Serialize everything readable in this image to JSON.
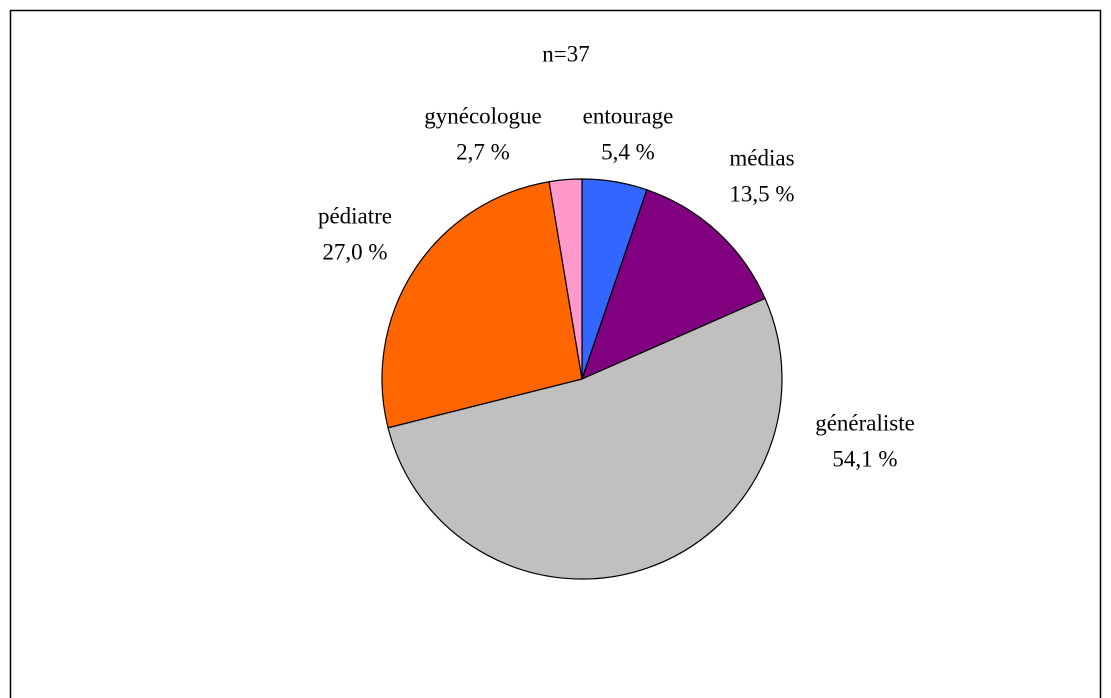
{
  "chart_data": {
    "type": "pie",
    "title": "n=37",
    "categories": [
      "entourage",
      "médias",
      "généraliste",
      "pédiatre",
      "gynécologue"
    ],
    "values": [
      5.4,
      13.5,
      54.1,
      27.0,
      2.7
    ],
    "value_labels": [
      "5,4 %",
      "13,5 %",
      "54,1 %",
      "27,0 %",
      "2,7 %"
    ],
    "colors": [
      "#3366ff",
      "#800080",
      "#c0c0c0",
      "#ff6600",
      "#ff99cc"
    ]
  }
}
